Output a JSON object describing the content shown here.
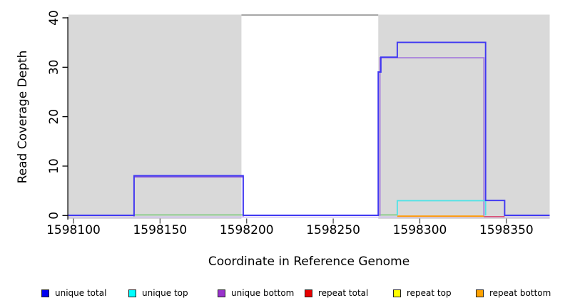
{
  "chart_data": {
    "type": "line",
    "subtype": "step-coverage-plot",
    "title": "",
    "xlabel": "Coordinate in Reference Genome",
    "ylabel": "Read Coverage Depth",
    "grid": false,
    "background": "#ffffff",
    "x_range": [
      1598096,
      1598375
    ],
    "y_range": [
      0,
      40
    ],
    "x_ticks": {
      "values": [
        1598100,
        1598150,
        1598200,
        1598250,
        1598300,
        1598350
      ],
      "labels": [
        "1598100",
        "1598150",
        "1598200",
        "1598250",
        "1598300",
        "1598350"
      ]
    },
    "y_ticks": {
      "values": [
        0,
        10,
        20,
        30,
        40
      ],
      "labels": [
        "0",
        "10",
        "20",
        "30",
        "40"
      ]
    },
    "shaded_regions": [
      {
        "x1": 1598096,
        "x2": 1598197,
        "color": "#d9d9d9"
      },
      {
        "x1": 1598276,
        "x2": 1598375,
        "color": "#d9d9d9"
      }
    ],
    "gap_top_line": {
      "color": "#a2a2a2"
    },
    "legend": {
      "position": "bottom",
      "items": [
        {
          "label": "unique total",
          "color": "#0000f0"
        },
        {
          "label": "unique top",
          "color": "#00ffff"
        },
        {
          "label": "unique bottom",
          "color": "#9933cc"
        },
        {
          "label": "repeat total",
          "color": "#e80000"
        },
        {
          "label": "repeat top",
          "color": "#ffff00"
        },
        {
          "label": "repeat bottom",
          "color": "#ffa200"
        }
      ]
    },
    "series": [
      {
        "name": "unique total",
        "color": "#0000f0",
        "segments": [
          [
            1598096,
            1598135,
            0
          ],
          [
            1598135,
            1598198,
            8
          ],
          [
            1598198,
            1598276,
            0
          ],
          [
            1598276,
            1598277,
            29
          ],
          [
            1598277,
            1598287,
            32
          ],
          [
            1598287,
            1598338,
            35
          ],
          [
            1598338,
            1598349,
            3
          ],
          [
            1598349,
            1598375,
            0
          ]
        ]
      },
      {
        "name": "unique top",
        "color": "#00ffff",
        "segments": [
          [
            1598096,
            1598287,
            0
          ],
          [
            1598287,
            1598338,
            3
          ],
          [
            1598338,
            1598375,
            0
          ]
        ]
      },
      {
        "name": "unique bottom",
        "color": "#9933cc",
        "segments": [
          [
            1598096,
            1598135,
            0
          ],
          [
            1598135,
            1598198,
            8
          ],
          [
            1598198,
            1598277,
            0
          ],
          [
            1598277,
            1598337,
            32
          ],
          [
            1598337,
            1598375,
            0
          ]
        ]
      },
      {
        "name": "repeat total",
        "color": "#e80000",
        "segments": [
          [
            1598096,
            1598375,
            0
          ]
        ]
      },
      {
        "name": "repeat top",
        "color": "#ffff00",
        "segments": [
          [
            1598096,
            1598375,
            0
          ]
        ]
      },
      {
        "name": "repeat bottom",
        "color": "#ffa200",
        "segments": [
          [
            1598096,
            1598375,
            0
          ]
        ]
      }
    ],
    "render_layers": [
      {
        "name": "zero-line-lavender",
        "color": "#cbbdf2",
        "width": 1.6,
        "dy": 2.2,
        "segments": [
          [
            1598097,
            1598375,
            0
          ]
        ]
      },
      {
        "name": "zero-line-green-blend",
        "color": "#7cc97c",
        "width": 1.6,
        "dy": -0.9,
        "segments": [
          [
            1598135,
            1598198,
            0
          ]
        ]
      },
      {
        "name": "zero-line-green-blend-2",
        "color": "#7cc97c",
        "width": 1.6,
        "dy": -0.9,
        "segments": [
          [
            1598276,
            1598287,
            0
          ]
        ]
      },
      {
        "name": "zero-line-orange",
        "color": "#ff9b06",
        "width": 2.0,
        "dy": 1.0,
        "segments": [
          [
            1598287,
            1598337,
            0
          ]
        ]
      },
      {
        "name": "zero-line-crimson",
        "color": "#d95577",
        "width": 1.8,
        "dy": 1.6,
        "segments": [
          [
            1598337,
            1598349,
            0
          ]
        ]
      },
      {
        "name": "unique-bottom-region1",
        "color": "#8f5fd8",
        "width": 1.7,
        "dy": 1.3,
        "segments": [
          [
            1598135,
            1598135,
            0
          ],
          [
            1598135,
            1598198,
            8
          ],
          [
            1598198,
            1598198,
            0
          ]
        ]
      },
      {
        "name": "unique-bottom-region2",
        "color": "#a87fdc",
        "width": 1.8,
        "dy": 0.5,
        "segments": [
          [
            1598277,
            1598277,
            0
          ],
          [
            1598277,
            1598337,
            32
          ],
          [
            1598337,
            1598337,
            0
          ]
        ]
      },
      {
        "name": "unique-top-region",
        "color": "#4fe3e6",
        "width": 1.8,
        "dy": 0,
        "segments": [
          [
            1598287,
            1598287,
            0
          ],
          [
            1598287,
            1598338,
            3
          ],
          [
            1598338,
            1598338,
            0
          ]
        ]
      },
      {
        "name": "unique-total-line",
        "color": "#4038f2",
        "width": 1.9,
        "dy": -0.3,
        "segments": [
          [
            1598097,
            1598135,
            0
          ],
          [
            1598135,
            1598198,
            8
          ],
          [
            1598198,
            1598276,
            0
          ],
          [
            1598276,
            1598277.5,
            29
          ],
          [
            1598277.5,
            1598287,
            32
          ],
          [
            1598287,
            1598338,
            35
          ],
          [
            1598338,
            1598349,
            3
          ],
          [
            1598349,
            1598375,
            0
          ]
        ]
      }
    ]
  }
}
